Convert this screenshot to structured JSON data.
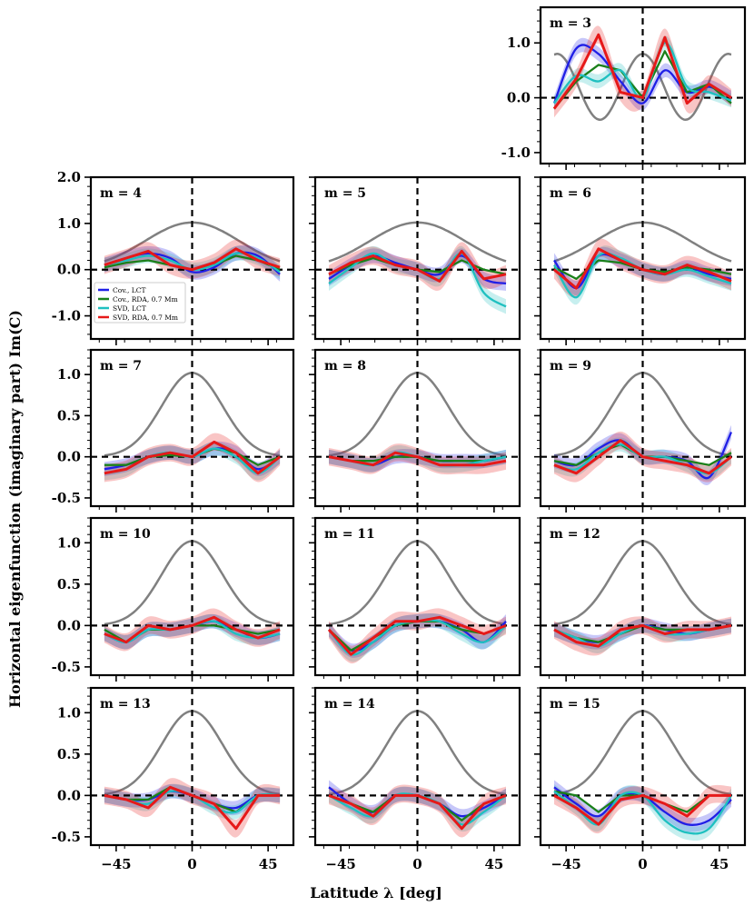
{
  "chart_data": {
    "type": "line",
    "ylabel": "Horizontal eigenfunction (imaginary part) Im(C)",
    "xlabel": "Latitude λ [deg]",
    "x_ticks": [
      -45,
      0,
      45
    ],
    "x_tick_labels": [
      "−45",
      "0",
      "45"
    ],
    "xlim": [
      -60,
      60
    ],
    "series_names": [
      "Cov., LCT",
      "Cov., RDA, 0.7 Mm",
      "SVD, LCT",
      "SVD, RDA, 0.7 Mm"
    ],
    "colors": {
      "cov_lct": "#1f1fe6",
      "cov_rda": "#1a801a",
      "svd_lct": "#1fc0c0",
      "svd_rda": "#e61919",
      "reference": "#808080",
      "zero_line": "#000000"
    },
    "panels": [
      {
        "m": 3,
        "label": "m = 3",
        "ylim": [
          -1.2,
          1.65
        ],
        "yticks": [
          -1.0,
          0.0,
          1.0
        ],
        "ytick_labels": [
          "-1.0",
          "0.0",
          "1.0"
        ],
        "lat_knots": [
          -52,
          -39,
          -26,
          -13,
          0,
          13,
          26,
          39,
          52
        ],
        "series": {
          "cov_lct": [
            -0.1,
            0.9,
            0.8,
            0.3,
            -0.1,
            0.5,
            0.1,
            0.2,
            0.0
          ],
          "cov_rda": [
            -0.2,
            0.3,
            0.6,
            0.5,
            0.0,
            0.85,
            0.1,
            0.25,
            -0.1
          ],
          "svd_lct": [
            -0.1,
            0.4,
            0.3,
            0.5,
            0.0,
            1.0,
            0.2,
            0.1,
            -0.05
          ],
          "svd_rda": [
            -0.2,
            0.35,
            1.15,
            0.1,
            0.0,
            1.1,
            -0.1,
            0.25,
            0.0
          ]
        }
      },
      {
        "m": 4,
        "label": "m = 4",
        "ylim": [
          -1.5,
          2.0
        ],
        "yticks": [
          -1.0,
          0.0,
          1.0,
          2.0
        ],
        "ytick_labels": [
          "-1.0",
          "0.0",
          "1.0",
          "2.0"
        ],
        "lat_knots": [
          -52,
          -39,
          -26,
          -13,
          0,
          13,
          26,
          39,
          52
        ],
        "series": {
          "cov_lct": [
            0.1,
            0.25,
            0.35,
            0.25,
            -0.05,
            0.05,
            0.35,
            0.3,
            -0.1
          ],
          "cov_rda": [
            0.05,
            0.15,
            0.2,
            0.1,
            0.0,
            0.1,
            0.3,
            0.2,
            0.0
          ],
          "svd_lct": [
            0.1,
            0.2,
            0.3,
            0.2,
            0.0,
            0.1,
            0.35,
            0.25,
            -0.05
          ],
          "svd_rda": [
            0.1,
            0.25,
            0.4,
            0.1,
            0.0,
            0.15,
            0.45,
            0.2,
            0.05
          ]
        }
      },
      {
        "m": 5,
        "label": "m = 5",
        "ylim": [
          -1.5,
          2.0
        ],
        "yticks": [
          -1.0,
          0.0,
          1.0,
          2.0
        ],
        "ytick_labels": [
          "-1.0",
          "0.0",
          "1.0",
          "2.0"
        ],
        "lat_knots": [
          -52,
          -39,
          -26,
          -13,
          0,
          13,
          26,
          39,
          52
        ],
        "series": {
          "cov_lct": [
            -0.2,
            0.1,
            0.3,
            0.15,
            0.0,
            -0.1,
            0.3,
            -0.2,
            -0.3
          ],
          "cov_rda": [
            -0.1,
            0.1,
            0.25,
            0.1,
            0.0,
            -0.05,
            0.2,
            0.0,
            -0.1
          ],
          "svd_lct": [
            -0.3,
            0.05,
            0.35,
            0.1,
            0.0,
            -0.2,
            0.35,
            -0.5,
            -0.8
          ],
          "svd_rda": [
            -0.1,
            0.15,
            0.3,
            0.1,
            0.0,
            -0.25,
            0.4,
            -0.2,
            -0.1
          ]
        }
      },
      {
        "m": 6,
        "label": "m = 6",
        "ylim": [
          -1.5,
          2.0
        ],
        "yticks": [
          -1.0,
          0.0,
          1.0,
          2.0
        ],
        "ytick_labels": [
          "-1.0",
          "0.0",
          "1.0",
          "2.0"
        ],
        "lat_knots": [
          -52,
          -39,
          -26,
          -13,
          0,
          13,
          26,
          39,
          52
        ],
        "series": {
          "cov_lct": [
            0.2,
            -0.4,
            0.3,
            0.2,
            0.0,
            -0.1,
            0.05,
            -0.1,
            -0.2
          ],
          "cov_rda": [
            0.05,
            -0.2,
            0.2,
            0.15,
            0.0,
            -0.05,
            0.05,
            0.0,
            -0.1
          ],
          "svd_lct": [
            0.1,
            -0.6,
            0.3,
            0.25,
            0.0,
            -0.1,
            0.0,
            -0.15,
            -0.3
          ],
          "svd_rda": [
            0.0,
            -0.4,
            0.45,
            0.2,
            0.0,
            -0.1,
            0.1,
            -0.05,
            -0.25
          ]
        }
      },
      {
        "m": 7,
        "label": "m = 7",
        "ylim": [
          -0.6,
          1.3
        ],
        "yticks": [
          -0.5,
          0.0,
          0.5,
          1.0
        ],
        "ytick_labels": [
          "-0.5",
          "0.0",
          "0.5",
          "1.0"
        ],
        "lat_knots": [
          -52,
          -39,
          -26,
          -13,
          0,
          13,
          26,
          39,
          52
        ],
        "series": {
          "cov_lct": [
            -0.15,
            -0.1,
            0.0,
            0.05,
            0.0,
            0.1,
            0.05,
            -0.15,
            0.0
          ],
          "cov_rda": [
            -0.1,
            -0.1,
            0.0,
            0.02,
            0.0,
            0.1,
            0.05,
            -0.1,
            0.0
          ],
          "svd_lct": [
            -0.2,
            -0.15,
            0.0,
            0.05,
            0.0,
            0.1,
            0.0,
            -0.2,
            0.0
          ],
          "svd_rda": [
            -0.2,
            -0.15,
            0.0,
            0.05,
            0.0,
            0.18,
            0.05,
            -0.2,
            0.0
          ]
        }
      },
      {
        "m": 8,
        "label": "m = 8",
        "ylim": [
          -0.6,
          1.3
        ],
        "yticks": [
          -0.5,
          0.0,
          0.5,
          1.0
        ],
        "ytick_labels": [
          "-0.5",
          "0.0",
          "0.5",
          "1.0"
        ],
        "lat_knots": [
          -52,
          -39,
          -26,
          -13,
          0,
          13,
          26,
          39,
          52
        ],
        "series": {
          "cov_lct": [
            0.0,
            -0.05,
            -0.1,
            0.0,
            0.0,
            -0.05,
            -0.05,
            -0.05,
            0.0
          ],
          "cov_rda": [
            0.0,
            -0.05,
            -0.05,
            0.0,
            0.0,
            -0.05,
            -0.05,
            -0.05,
            0.0
          ],
          "svd_lct": [
            0.0,
            -0.05,
            -0.1,
            0.05,
            0.0,
            -0.1,
            -0.1,
            -0.05,
            0.0
          ],
          "svd_rda": [
            0.0,
            -0.05,
            -0.1,
            0.05,
            0.0,
            -0.1,
            -0.1,
            -0.1,
            -0.05
          ]
        }
      },
      {
        "m": 9,
        "label": "m = 9",
        "ylim": [
          -0.6,
          1.3
        ],
        "yticks": [
          -0.5,
          0.0,
          0.5,
          1.0
        ],
        "ytick_labels": [
          "-0.5",
          "0.0",
          "0.5",
          "1.0"
        ],
        "lat_knots": [
          -52,
          -39,
          -26,
          -13,
          0,
          13,
          26,
          39,
          52
        ],
        "series": {
          "cov_lct": [
            -0.05,
            -0.1,
            0.1,
            0.2,
            0.0,
            0.0,
            -0.05,
            -0.25,
            0.3
          ],
          "cov_rda": [
            -0.05,
            -0.1,
            0.05,
            0.15,
            0.0,
            0.0,
            -0.05,
            -0.1,
            0.05
          ],
          "svd_lct": [
            -0.1,
            -0.15,
            0.05,
            0.15,
            0.0,
            0.0,
            -0.1,
            -0.2,
            0.0
          ],
          "svd_rda": [
            -0.1,
            -0.2,
            0.0,
            0.2,
            0.0,
            -0.05,
            -0.1,
            -0.2,
            0.0
          ]
        }
      },
      {
        "m": 10,
        "label": "m = 10",
        "ylim": [
          -0.6,
          1.3
        ],
        "yticks": [
          -0.5,
          0.0,
          0.5,
          1.0
        ],
        "ytick_labels": [
          "-0.5",
          "0.0",
          "0.5",
          "1.0"
        ],
        "lat_knots": [
          -52,
          -39,
          -26,
          -13,
          0,
          13,
          26,
          39,
          52
        ],
        "series": {
          "cov_lct": [
            -0.1,
            -0.2,
            -0.05,
            -0.05,
            0.0,
            0.05,
            -0.05,
            -0.15,
            -0.1
          ],
          "cov_rda": [
            -0.05,
            -0.2,
            -0.05,
            -0.05,
            0.0,
            0.0,
            -0.05,
            -0.1,
            -0.05
          ],
          "svd_lct": [
            -0.1,
            -0.2,
            -0.05,
            -0.05,
            0.0,
            0.05,
            -0.1,
            -0.15,
            -0.1
          ],
          "svd_rda": [
            -0.1,
            -0.2,
            0.0,
            -0.05,
            0.0,
            0.1,
            -0.05,
            -0.15,
            -0.05
          ]
        }
      },
      {
        "m": 11,
        "label": "m = 11",
        "ylim": [
          -0.6,
          1.3
        ],
        "yticks": [
          -0.5,
          0.0,
          0.5,
          1.0
        ],
        "ytick_labels": [
          "-0.5",
          "0.0",
          "0.5",
          "1.0"
        ],
        "lat_knots": [
          -52,
          -39,
          -26,
          -13,
          0,
          13,
          26,
          39,
          52
        ],
        "series": {
          "cov_lct": [
            -0.05,
            -0.3,
            -0.2,
            0.0,
            0.05,
            0.05,
            -0.05,
            -0.2,
            0.05
          ],
          "cov_rda": [
            -0.05,
            -0.3,
            -0.15,
            0.0,
            0.05,
            0.05,
            -0.05,
            -0.1,
            0.0
          ],
          "svd_lct": [
            -0.05,
            -0.35,
            -0.2,
            0.0,
            0.05,
            0.05,
            -0.1,
            -0.2,
            0.0
          ],
          "svd_rda": [
            -0.05,
            -0.35,
            -0.15,
            0.05,
            0.05,
            0.1,
            0.0,
            -0.1,
            0.0
          ]
        }
      },
      {
        "m": 12,
        "label": "m = 12",
        "ylim": [
          -0.6,
          1.3
        ],
        "yticks": [
          -0.5,
          0.0,
          0.5,
          1.0
        ],
        "ytick_labels": [
          "-0.5",
          "0.0",
          "0.5",
          "1.0"
        ],
        "lat_knots": [
          -52,
          -39,
          -26,
          -13,
          0,
          13,
          26,
          39,
          52
        ],
        "series": {
          "cov_lct": [
            -0.05,
            -0.15,
            -0.2,
            -0.1,
            0.0,
            -0.05,
            -0.1,
            -0.05,
            0.0
          ],
          "cov_rda": [
            -0.05,
            -0.15,
            -0.2,
            -0.1,
            0.0,
            -0.05,
            -0.05,
            -0.05,
            0.0
          ],
          "svd_lct": [
            -0.05,
            -0.15,
            -0.25,
            -0.1,
            0.0,
            -0.1,
            -0.1,
            -0.05,
            0.0
          ],
          "svd_rda": [
            -0.05,
            -0.2,
            -0.25,
            -0.05,
            0.0,
            -0.1,
            -0.05,
            -0.05,
            0.0
          ]
        }
      },
      {
        "m": 13,
        "label": "m = 13",
        "ylim": [
          -0.6,
          1.3
        ],
        "yticks": [
          -0.5,
          0.0,
          0.5,
          1.0
        ],
        "ytick_labels": [
          "-0.5",
          "0.0",
          "0.5",
          "1.0"
        ],
        "lat_knots": [
          -52,
          -39,
          -26,
          -13,
          0,
          13,
          26,
          39,
          52
        ],
        "series": {
          "cov_lct": [
            0.0,
            -0.05,
            -0.05,
            0.05,
            0.0,
            -0.1,
            -0.15,
            0.0,
            0.0
          ],
          "cov_rda": [
            0.0,
            -0.05,
            -0.05,
            0.1,
            0.0,
            -0.1,
            -0.2,
            0.0,
            0.0
          ],
          "svd_lct": [
            0.0,
            -0.05,
            -0.1,
            0.05,
            0.0,
            -0.15,
            -0.2,
            0.0,
            0.0
          ],
          "svd_rda": [
            0.0,
            -0.05,
            -0.15,
            0.1,
            0.0,
            -0.1,
            -0.4,
            0.0,
            0.0
          ]
        }
      },
      {
        "m": 14,
        "label": "m = 14",
        "ylim": [
          -0.6,
          1.3
        ],
        "yticks": [
          -0.5,
          0.0,
          0.5,
          1.0
        ],
        "ytick_labels": [
          "-0.5",
          "0.0",
          "0.5",
          "1.0"
        ],
        "lat_knots": [
          -52,
          -39,
          -26,
          -13,
          0,
          13,
          26,
          39,
          52
        ],
        "series": {
          "cov_lct": [
            0.1,
            -0.1,
            -0.2,
            0.0,
            0.0,
            -0.1,
            -0.25,
            -0.15,
            0.0
          ],
          "cov_rda": [
            0.0,
            -0.1,
            -0.2,
            0.0,
            0.0,
            -0.1,
            -0.3,
            -0.1,
            0.0
          ],
          "svd_lct": [
            0.0,
            -0.15,
            -0.25,
            0.0,
            0.0,
            -0.1,
            -0.35,
            -0.2,
            0.0
          ],
          "svd_rda": [
            0.0,
            -0.1,
            -0.25,
            0.0,
            0.0,
            -0.1,
            -0.4,
            -0.1,
            0.0
          ]
        }
      },
      {
        "m": 15,
        "label": "m = 15",
        "ylim": [
          -0.6,
          1.3
        ],
        "yticks": [
          -0.5,
          0.0,
          0.5,
          1.0
        ],
        "ytick_labels": [
          "-0.5",
          "0.0",
          "0.5",
          "1.0"
        ],
        "lat_knots": [
          -52,
          -39,
          -26,
          -13,
          0,
          13,
          26,
          39,
          52
        ],
        "series": {
          "cov_lct": [
            0.1,
            -0.1,
            -0.25,
            0.0,
            0.0,
            -0.2,
            -0.35,
            -0.3,
            -0.05
          ],
          "cov_rda": [
            0.05,
            0.0,
            -0.2,
            0.0,
            0.0,
            -0.1,
            -0.2,
            0.0,
            0.0
          ],
          "svd_lct": [
            0.05,
            -0.15,
            -0.35,
            0.0,
            0.0,
            -0.3,
            -0.45,
            -0.4,
            0.0
          ],
          "svd_rda": [
            0.0,
            -0.15,
            -0.35,
            -0.05,
            0.0,
            -0.1,
            -0.25,
            0.0,
            0.0
          ]
        }
      }
    ]
  }
}
